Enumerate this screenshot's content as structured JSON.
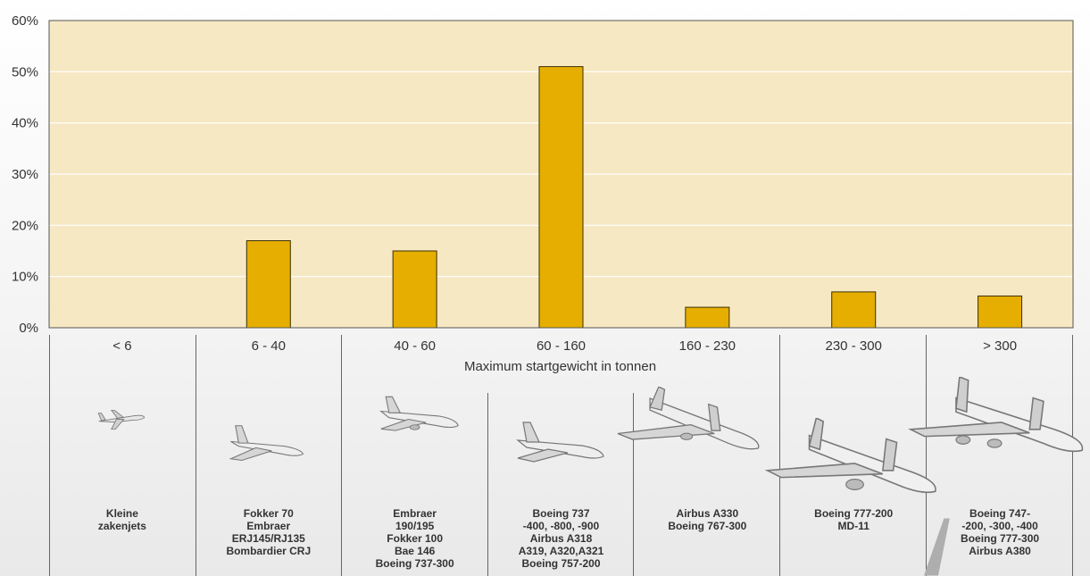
{
  "chart_data": {
    "type": "bar",
    "categories": [
      "< 6",
      "6 - 40",
      "40 - 60",
      "60 - 160",
      "160 - 230",
      "230 - 300",
      "> 300"
    ],
    "values": [
      0,
      17,
      15,
      51,
      4,
      7,
      6.2
    ],
    "ylim": [
      0,
      60
    ],
    "yticks": [
      "0%",
      "10%",
      "20%",
      "30%",
      "40%",
      "50%",
      "60%"
    ],
    "xlabel": "Maximum startgewicht in tonnen",
    "grid": true,
    "colors": {
      "plot_bg": "#f6e8c3",
      "bar": "#e6ae00",
      "bar_edge": "#3b3000"
    }
  },
  "aircraft": [
    {
      "label": "Kleine\nzakenjets"
    },
    {
      "label": "Fokker 70\nEmbraer\nERJ145/RJ135\nBombardier CRJ"
    },
    {
      "label": "Embraer\n190/195\nFokker 100\nBae 146\nBoeing 737-300"
    },
    {
      "label": "Boeing 737\n-400, -800, -900\nAirbus A318\nA319, A320,A321\nBoeing 757-200"
    },
    {
      "label": "Airbus A330\nBoeing 767-300"
    },
    {
      "label": "Boeing 777-200\nMD-11"
    },
    {
      "label": "Boeing 747-\n-200, -300, -400\nBoeing 777-300\nAirbus A380"
    }
  ]
}
